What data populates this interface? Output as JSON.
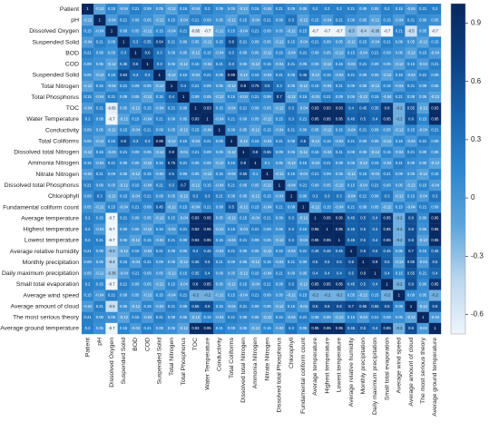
{
  "chart_data": {
    "type": "heatmap",
    "categories": [
      "Patient",
      "pH",
      "Dissolved Oxygen",
      "Suspended Solid",
      "BOD",
      "COD",
      "Suspended Solid",
      "Total Nitrogen",
      "Total Phosphorus",
      "TOC",
      "Water Temperature",
      "Conductivity",
      "Total Coliforms",
      "Dissolved total Nitrogen",
      "Ammonia Nitrogen",
      "Nitrate Nitrogen",
      "Dissolved total Phosphorus",
      "Chlorophyll",
      "Fundamental coliform count",
      "Average temperature",
      "Highest temperature",
      "Lowest temperature",
      "Average relative humidity",
      "Monthly precipitation",
      "Daily maximum precipitation",
      "Small total evaporation",
      "Average wind speed",
      "Average amount of cloud",
      "The most serious theory",
      "Average ground temperature"
    ],
    "values": [
      [
        1,
        -0.12,
        0.15,
        -0.04,
        0.21,
        0.09,
        0.05,
        -0.12,
        0.15,
        -0.04,
        0.2,
        0.09,
        0.05,
        -0.12,
        0.15,
        -0.04,
        0.21,
        0.09,
        0.05,
        0.2,
        0.2,
        0.2,
        0.21,
        0.09,
        0.05,
        0.2,
        0.15,
        -0.04,
        0.21,
        0.2
      ],
      [
        -0.12,
        1,
        -0.04,
        0.21,
        0.09,
        0.05,
        -0.12,
        0.15,
        -0.04,
        0.21,
        0.09,
        0.05,
        -0.12,
        0.15,
        -0.04,
        0.21,
        0.09,
        0.3,
        -0.12,
        0.15,
        -0.04,
        0.21,
        0.09,
        0.05,
        -0.12,
        0.15,
        -0.04,
        0.21,
        0.09,
        0.05
      ],
      [
        0.15,
        -0.04,
        1,
        0.09,
        0.05,
        -0.12,
        0.15,
        -0.04,
        0.21,
        -0.65,
        -0.7,
        -0.12,
        0.15,
        -0.04,
        0.21,
        0.09,
        0.05,
        -0.12,
        0.15,
        -0.7,
        -0.7,
        -0.7,
        -0.3,
        -0.4,
        -0.35,
        -0.7,
        0.21,
        -0.5,
        0.05,
        -0.7
      ],
      [
        -0.04,
        0.21,
        0.09,
        1,
        0.3,
        0.35,
        0.64,
        0.21,
        0.09,
        0.05,
        -0.12,
        0.15,
        0.6,
        0.21,
        0.09,
        0.05,
        -0.12,
        0.15,
        -0.04,
        0.21,
        0.09,
        0.05,
        -0.12,
        0.15,
        -0.04,
        0.21,
        0.09,
        0.05,
        -0.12,
        0.15
      ],
      [
        0.21,
        0.09,
        0.05,
        0.3,
        1,
        0.6,
        0.3,
        0.09,
        0.05,
        -0.12,
        0.15,
        -0.04,
        0.3,
        0.09,
        0.05,
        -0.12,
        0.15,
        -0.04,
        0.21,
        0.09,
        0.05,
        -0.12,
        0.15,
        -0.04,
        0.21,
        0.09,
        0.05,
        -0.12,
        0.15,
        -0.04
      ],
      [
        0.09,
        0.05,
        -0.12,
        0.35,
        0.6,
        1,
        0.3,
        0.05,
        -0.12,
        0.15,
        -0.04,
        0.21,
        0.3,
        0.05,
        -0.12,
        0.15,
        -0.04,
        0.21,
        0.09,
        0.05,
        -0.12,
        0.15,
        -0.04,
        0.21,
        0.09,
        0.05,
        -0.12,
        0.15,
        -0.04,
        0.21
      ],
      [
        0.05,
        -0.12,
        0.15,
        0.64,
        0.3,
        0.3,
        1,
        -0.12,
        0.15,
        -0.04,
        0.21,
        0.09,
        0.99,
        -0.12,
        0.15,
        -0.04,
        0.21,
        0.09,
        0.45,
        -0.12,
        0.15,
        -0.04,
        0.21,
        0.09,
        0.05,
        -0.12,
        0.15,
        -0.04,
        0.21,
        0.09
      ],
      [
        -0.12,
        0.15,
        -0.04,
        0.21,
        0.09,
        0.05,
        -0.12,
        1,
        0.4,
        0.21,
        0.09,
        0.05,
        -0.12,
        0.9,
        0.75,
        0.5,
        0.3,
        0.05,
        -0.12,
        0.15,
        -0.04,
        0.21,
        0.09,
        0.05,
        -0.12,
        0.15,
        -0.04,
        0.21,
        0.09,
        0.05
      ],
      [
        0.15,
        -0.04,
        0.21,
        0.09,
        0.05,
        -0.12,
        0.15,
        0.4,
        1,
        0.09,
        0.05,
        -0.12,
        0.15,
        -0.04,
        0.21,
        0.09,
        0.7,
        -0.12,
        0.15,
        -0.04,
        0.21,
        0.09,
        0.05,
        -0.12,
        0.15,
        -0.04,
        0.21,
        0.09,
        0.05,
        -0.12
      ],
      [
        -0.04,
        0.21,
        -0.65,
        0.05,
        -0.12,
        0.15,
        -0.04,
        0.21,
        0.09,
        1,
        0.93,
        0.15,
        -0.04,
        0.21,
        0.09,
        0.05,
        -0.12,
        0.3,
        -0.04,
        0.93,
        0.93,
        0.93,
        0.4,
        0.45,
        0.35,
        0.8,
        -0.2,
        0.55,
        -0.12,
        0.93
      ],
      [
        0.2,
        0.09,
        -0.7,
        -0.12,
        0.15,
        -0.04,
        0.21,
        0.09,
        0.05,
        0.93,
        1,
        -0.04,
        0.21,
        0.09,
        0.05,
        -0.12,
        0.15,
        0.3,
        0.21,
        0.95,
        0.95,
        0.95,
        0.45,
        0.5,
        0.4,
        0.85,
        -0.2,
        0.6,
        0.15,
        0.95
      ],
      [
        0.09,
        0.05,
        -0.12,
        0.15,
        -0.04,
        0.21,
        0.09,
        0.05,
        -0.12,
        0.15,
        -0.04,
        1,
        0.09,
        0.05,
        -0.12,
        0.15,
        -0.04,
        0.21,
        0.09,
        0.05,
        -0.12,
        0.15,
        -0.04,
        0.21,
        0.09,
        0.05,
        -0.12,
        0.15,
        -0.04,
        0.21
      ],
      [
        0.05,
        -0.12,
        0.15,
        0.6,
        0.3,
        0.3,
        0.99,
        -0.12,
        0.15,
        -0.04,
        0.21,
        0.09,
        1,
        -0.12,
        0.15,
        -0.04,
        0.21,
        0.09,
        0.5,
        -0.12,
        0.15,
        -0.04,
        0.21,
        0.09,
        0.05,
        -0.12,
        0.15,
        -0.04,
        0.21,
        0.09
      ],
      [
        -0.12,
        0.15,
        -0.04,
        0.21,
        0.09,
        0.05,
        -0.12,
        0.9,
        -0.04,
        0.21,
        0.09,
        0.05,
        -0.12,
        1,
        0.8,
        0.55,
        0.09,
        0.05,
        -0.12,
        0.15,
        -0.04,
        0.21,
        0.09,
        0.05,
        -0.12,
        0.15,
        -0.04,
        0.21,
        0.09,
        0.05
      ],
      [
        0.15,
        -0.04,
        0.21,
        0.09,
        0.05,
        -0.12,
        0.15,
        0.75,
        0.21,
        0.09,
        0.05,
        -0.12,
        0.15,
        0.8,
        1,
        0.1,
        0.05,
        -0.12,
        0.15,
        -0.04,
        0.21,
        0.09,
        0.05,
        -0.12,
        0.15,
        -0.04,
        0.21,
        0.09,
        0.05,
        -0.12
      ],
      [
        -0.04,
        0.21,
        0.09,
        0.05,
        -0.12,
        0.15,
        -0.04,
        0.5,
        0.09,
        0.05,
        -0.12,
        0.15,
        -0.04,
        0.55,
        0.1,
        1,
        -0.12,
        0.15,
        -0.04,
        0.21,
        0.09,
        0.05,
        -0.12,
        0.15,
        -0.04,
        0.21,
        0.09,
        0.05,
        -0.12,
        0.15
      ],
      [
        0.21,
        0.09,
        0.05,
        -0.12,
        0.15,
        -0.04,
        0.21,
        0.3,
        0.7,
        -0.12,
        0.15,
        -0.04,
        0.21,
        0.09,
        0.05,
        -0.12,
        1,
        -0.04,
        0.21,
        0.09,
        0.05,
        -0.12,
        0.15,
        -0.04,
        0.21,
        0.09,
        0.05,
        -0.12,
        0.15,
        -0.04
      ],
      [
        0.09,
        0.3,
        -0.12,
        0.15,
        -0.04,
        0.21,
        0.09,
        0.05,
        -0.12,
        0.3,
        0.3,
        0.21,
        0.09,
        0.05,
        -0.12,
        0.15,
        -0.04,
        1,
        0.09,
        0.3,
        0.3,
        0.3,
        -0.04,
        0.21,
        0.09,
        0.3,
        -0.12,
        0.15,
        -0.04,
        0.3
      ],
      [
        0.05,
        -0.12,
        0.15,
        -0.04,
        0.21,
        0.09,
        0.45,
        -0.12,
        0.15,
        -0.04,
        0.21,
        0.09,
        0.5,
        -0.12,
        0.15,
        -0.04,
        0.21,
        0.09,
        1,
        -0.12,
        0.15,
        -0.04,
        0.21,
        0.09,
        0.05,
        -0.12,
        0.15,
        -0.04,
        0.21,
        0.09
      ],
      [
        0.2,
        0.15,
        -0.7,
        0.21,
        0.09,
        0.05,
        -0.12,
        0.15,
        -0.04,
        0.93,
        0.95,
        0.05,
        -0.12,
        0.15,
        -0.04,
        0.21,
        0.09,
        0.3,
        -0.12,
        1,
        0.95,
        0.95,
        0.45,
        0.5,
        0.4,
        0.85,
        -0.2,
        0.6,
        0.09,
        0.95
      ],
      [
        0.2,
        -0.04,
        -0.7,
        0.09,
        0.05,
        -0.12,
        0.15,
        -0.04,
        0.21,
        0.93,
        0.95,
        -0.12,
        0.15,
        -0.04,
        0.21,
        0.09,
        0.05,
        0.3,
        0.15,
        0.95,
        1,
        0.95,
        0.45,
        0.5,
        0.4,
        0.85,
        -0.2,
        0.6,
        0.05,
        0.95
      ],
      [
        0.2,
        0.21,
        -0.7,
        0.05,
        -0.12,
        0.15,
        -0.04,
        0.21,
        0.09,
        0.93,
        0.95,
        0.15,
        -0.04,
        0.21,
        0.09,
        0.05,
        -0.12,
        0.3,
        -0.04,
        0.95,
        0.95,
        1,
        0.45,
        0.5,
        0.4,
        0.85,
        -0.2,
        0.6,
        -0.12,
        0.95
      ],
      [
        0.21,
        0.09,
        -0.3,
        -0.12,
        0.15,
        -0.04,
        0.21,
        0.09,
        0.05,
        0.4,
        0.45,
        -0.04,
        0.21,
        0.09,
        0.05,
        -0.12,
        0.15,
        -0.04,
        0.21,
        0.45,
        0.45,
        0.45,
        1,
        0.6,
        0.5,
        0.45,
        0.05,
        0.7,
        0.15,
        0.45
      ],
      [
        0.09,
        0.05,
        -0.4,
        0.15,
        -0.04,
        0.21,
        0.09,
        0.05,
        -0.12,
        0.45,
        0.5,
        0.21,
        0.09,
        0.05,
        -0.12,
        0.15,
        -0.04,
        0.21,
        0.09,
        0.5,
        0.5,
        0.5,
        0.6,
        1,
        0.9,
        0.5,
        -0.12,
        0.65,
        -0.04,
        0.5
      ],
      [
        0.05,
        -0.12,
        -0.35,
        -0.04,
        0.21,
        0.09,
        0.05,
        -0.12,
        0.15,
        0.35,
        0.4,
        0.09,
        0.05,
        -0.12,
        0.15,
        -0.04,
        0.21,
        0.09,
        0.05,
        0.4,
        0.4,
        0.4,
        0.5,
        0.9,
        1,
        0.4,
        0.15,
        0.55,
        0.21,
        0.4
      ],
      [
        0.2,
        0.15,
        -0.7,
        0.21,
        0.09,
        0.05,
        -0.12,
        0.15,
        -0.04,
        0.8,
        0.85,
        0.05,
        -0.12,
        0.15,
        -0.04,
        0.21,
        0.09,
        0.3,
        -0.12,
        0.85,
        0.85,
        0.85,
        0.45,
        0.5,
        0.4,
        1,
        -0.2,
        0.6,
        0.09,
        0.85
      ],
      [
        0.15,
        -0.04,
        0.21,
        0.09,
        0.05,
        -0.12,
        0.15,
        -0.04,
        0.21,
        -0.2,
        -0.2,
        -0.12,
        0.15,
        -0.04,
        0.21,
        0.09,
        0.05,
        -0.12,
        0.15,
        -0.2,
        -0.2,
        -0.2,
        0.05,
        -0.12,
        0.15,
        -0.2,
        1,
        0.09,
        0.05,
        -0.2
      ],
      [
        -0.04,
        0.21,
        -0.5,
        0.05,
        -0.12,
        0.15,
        -0.04,
        0.21,
        0.09,
        0.55,
        0.6,
        0.15,
        -0.04,
        0.21,
        0.09,
        0.05,
        -0.12,
        0.15,
        -0.04,
        0.6,
        0.6,
        0.6,
        0.7,
        0.65,
        0.55,
        0.6,
        0.09,
        1,
        -0.12,
        0.6
      ],
      [
        0.21,
        0.09,
        0.05,
        -0.12,
        0.15,
        -0.04,
        0.21,
        0.09,
        0.05,
        -0.12,
        0.15,
        -0.04,
        0.21,
        0.09,
        0.05,
        -0.12,
        0.15,
        -0.04,
        0.21,
        0.09,
        0.05,
        -0.12,
        0.15,
        -0.04,
        0.21,
        0.09,
        0.05,
        -0.12,
        1,
        -0.04
      ],
      [
        0.2,
        0.05,
        -0.7,
        0.15,
        -0.04,
        0.21,
        0.09,
        0.05,
        -0.12,
        0.93,
        0.95,
        0.21,
        0.09,
        0.05,
        -0.12,
        0.15,
        -0.04,
        0.3,
        0.09,
        0.95,
        0.95,
        0.95,
        0.45,
        0.5,
        0.4,
        0.85,
        -0.2,
        0.6,
        -0.04,
        1
      ]
    ],
    "clim": [
      -0.7,
      1
    ],
    "colorbar_ticks": [
      -0.6,
      -0.3,
      0,
      0.3,
      0.6,
      0.9
    ],
    "colorscale": [
      "#eef5fc",
      "#b9d6ee",
      "#5aa3dc",
      "#2b86cf",
      "#1763ad",
      "#0b3f82",
      "#08275e"
    ]
  }
}
